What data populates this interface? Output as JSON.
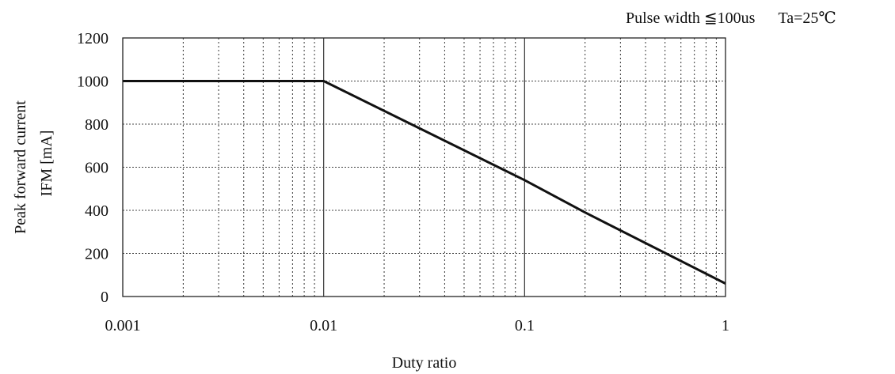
{
  "chart_data": {
    "type": "line",
    "conditions": [
      "Pulse width  ≦100us",
      "Ta=25℃"
    ],
    "xlabel": "Duty ratio",
    "ylabel_lines": [
      "Peak forward current",
      "IFM  [mA]"
    ],
    "x_scale": "log",
    "xlim": [
      0.001,
      1
    ],
    "ylim": [
      0,
      1200
    ],
    "x_ticks": [
      0.001,
      0.01,
      0.1,
      1
    ],
    "x_tick_labels": [
      "0.001",
      "0.01",
      "0.1",
      "1"
    ],
    "y_ticks": [
      0,
      200,
      400,
      600,
      800,
      1000,
      1200
    ],
    "y_tick_labels": [
      "0",
      "200",
      "400",
      "600",
      "800",
      "1000",
      "1200"
    ],
    "grid": true,
    "series": [
      {
        "x": [
          0.001,
          0.01,
          0.1,
          0.2,
          1
        ],
        "y": [
          1000,
          1000,
          540,
          390,
          60
        ]
      }
    ]
  }
}
